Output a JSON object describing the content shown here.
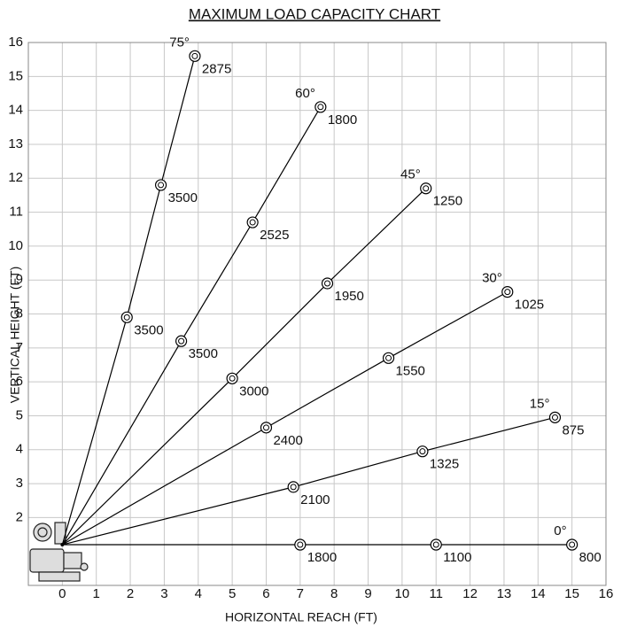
{
  "chart_data": {
    "type": "boom-load",
    "title": "MAXIMUM LOAD CAPACITY CHART",
    "x_label": "HORIZONTAL REACH (FT)",
    "y_label": "VERTICAL HEIGHT (FT)",
    "xlim": [
      -1,
      16
    ],
    "ylim": [
      0,
      16
    ],
    "xticks": [
      0,
      1,
      2,
      3,
      4,
      5,
      6,
      7,
      8,
      9,
      10,
      11,
      12,
      13,
      14,
      15,
      16
    ],
    "yticks": [
      2,
      3,
      4,
      5,
      6,
      7,
      8,
      9,
      10,
      11,
      12,
      13,
      14,
      15,
      16
    ],
    "grid": true,
    "color": "#000000",
    "boom_pivot": {
      "x": 0,
      "y": 1.2
    },
    "series": [
      {
        "name": "75°",
        "x": [
          1.9,
          2.9,
          3.9
        ],
        "y": [
          7.9,
          11.8,
          15.6
        ],
        "loads": [
          3500,
          3500,
          2875
        ]
      },
      {
        "name": "60°",
        "x": [
          3.5,
          5.6,
          7.6
        ],
        "y": [
          7.2,
          10.7,
          14.1
        ],
        "loads": [
          3500,
          2525,
          1800
        ]
      },
      {
        "name": "45°",
        "x": [
          5.0,
          7.8,
          10.7
        ],
        "y": [
          6.1,
          8.9,
          11.7
        ],
        "loads": [
          3000,
          1950,
          1250
        ]
      },
      {
        "name": "30°",
        "x": [
          6.0,
          9.6,
          13.1
        ],
        "y": [
          4.65,
          6.7,
          8.65
        ],
        "loads": [
          2400,
          1550,
          1025
        ]
      },
      {
        "name": "15°",
        "x": [
          6.8,
          10.6,
          14.5
        ],
        "y": [
          2.9,
          3.95,
          4.95
        ],
        "loads": [
          2100,
          1325,
          875
        ]
      },
      {
        "name": "0°",
        "x": [
          7.0,
          11.0,
          15.0
        ],
        "y": [
          1.2,
          1.2,
          1.2
        ],
        "loads": [
          1800,
          1100,
          800
        ]
      }
    ]
  }
}
